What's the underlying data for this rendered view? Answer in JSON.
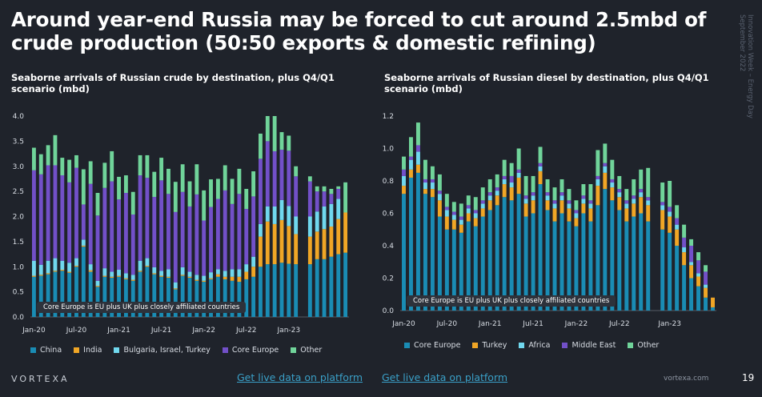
{
  "title": "Around year-end Russia may be forced to cut around 2.5mbd of crude production (50:50 exports & domestic refining)",
  "side_note_line1": "Innovation Week – Energy Day",
  "side_note_line2": "September 2022",
  "brand": "VORTEXA",
  "site": "vortexa.com",
  "page_number": "19",
  "links": [
    "Get live data on platform",
    "Get live data on platform"
  ],
  "colors": {
    "background": "#1f232b",
    "blue": "#1a8cb4",
    "orange": "#f0a626",
    "cyan": "#70d8ee",
    "purple": "#7250c8",
    "green": "#70d49a",
    "accent_link": "#3aa0c8"
  },
  "chart_data": [
    {
      "type": "bar",
      "stacked": true,
      "title": "Seaborne arrivals of Russian crude by destination, plus Q4/Q1 scenario (mbd)",
      "ylim": [
        0,
        4
      ],
      "yticks": [
        "0.0",
        "0.5",
        "1.0",
        "1.5",
        "2.0",
        "2.5",
        "3.0",
        "3.5",
        "4.0"
      ],
      "xtick_labels": [
        "Jan-20",
        "Jul-20",
        "Jan-21",
        "Jul-21",
        "Jan-22",
        "Jul-22",
        "Jan-23"
      ],
      "annotation": "Core Europe is EU plus UK plus closely affiliated countries",
      "series": [
        {
          "name": "China",
          "color": "#1a8cb4",
          "values": [
            0.8,
            0.82,
            0.85,
            0.9,
            0.92,
            0.88,
            1.0,
            1.4,
            0.9,
            0.6,
            0.8,
            0.78,
            0.8,
            0.75,
            0.72,
            0.9,
            1.0,
            0.85,
            0.8,
            0.78,
            0.55,
            0.82,
            0.78,
            0.72,
            0.7,
            0.75,
            0.8,
            0.75,
            0.72,
            0.7,
            0.75,
            0.8,
            1.0,
            1.05,
            1.05,
            1.08,
            1.06,
            1.05,
            null,
            1.05,
            1.15,
            1.15,
            1.2,
            1.25,
            1.28
          ]
        },
        {
          "name": "India",
          "color": "#f0a626",
          "values": [
            0.02,
            0.02,
            0.02,
            0.02,
            0.02,
            0.02,
            0.02,
            0.02,
            0.03,
            0.02,
            0.02,
            0.02,
            0.02,
            0.02,
            0.02,
            0.02,
            0.02,
            0.02,
            0.02,
            0.02,
            0.02,
            0.02,
            0.02,
            0.02,
            0.02,
            0.02,
            0.05,
            0.05,
            0.08,
            0.1,
            0.15,
            0.2,
            0.6,
            0.85,
            0.8,
            0.85,
            0.75,
            0.6,
            null,
            0.55,
            0.55,
            0.6,
            0.6,
            0.7,
            0.8
          ]
        },
        {
          "name": "Bulgaria, Israel, Turkey",
          "color": "#70d8ee",
          "values": [
            0.3,
            0.2,
            0.25,
            0.25,
            0.18,
            0.18,
            0.15,
            0.12,
            0.12,
            0.1,
            0.15,
            0.1,
            0.12,
            0.1,
            0.1,
            0.2,
            0.15,
            0.12,
            0.1,
            0.15,
            0.12,
            0.15,
            0.1,
            0.1,
            0.1,
            0.12,
            0.1,
            0.12,
            0.15,
            0.15,
            0.15,
            0.2,
            0.25,
            0.3,
            0.35,
            0.4,
            0.4,
            0.35,
            null,
            0.4,
            0.4,
            0.45,
            0.45,
            0.4,
            0.0
          ]
        },
        {
          "name": "Core Europe",
          "color": "#7250c8",
          "values": [
            1.8,
            1.8,
            1.9,
            1.85,
            1.7,
            1.6,
            1.8,
            0.7,
            1.6,
            1.3,
            1.6,
            1.8,
            1.4,
            1.6,
            1.2,
            1.7,
            1.6,
            1.4,
            1.8,
            1.5,
            1.4,
            1.5,
            1.3,
            1.6,
            1.1,
            1.3,
            1.4,
            1.6,
            1.3,
            1.5,
            1.1,
            1.2,
            1.3,
            1.3,
            1.1,
            1.0,
            1.1,
            0.8,
            null,
            0.7,
            0.4,
            0.3,
            0.2,
            0.2,
            0.0
          ]
        },
        {
          "name": "Other",
          "color": "#70d49a",
          "values": [
            0.45,
            0.4,
            0.4,
            0.6,
            0.35,
            0.45,
            0.25,
            0.7,
            0.45,
            0.45,
            0.5,
            0.6,
            0.45,
            0.35,
            0.45,
            0.4,
            0.45,
            0.5,
            0.45,
            0.5,
            0.6,
            0.55,
            0.5,
            0.6,
            0.6,
            0.55,
            0.4,
            0.5,
            0.5,
            0.5,
            0.4,
            0.5,
            0.5,
            0.5,
            0.7,
            0.35,
            0.3,
            0.2,
            null,
            0.1,
            0.1,
            0.1,
            0.1,
            0.05,
            0.6
          ]
        }
      ]
    },
    {
      "type": "bar",
      "stacked": true,
      "title": "Seaborne arrivals of Russian diesel by destination, plus Q4/Q1 scenario (mbd)",
      "ylim": [
        0,
        1.2
      ],
      "yticks": [
        "0.0",
        "0.2",
        "0.4",
        "0.6",
        "0.8",
        "1.0",
        "1.2"
      ],
      "xtick_labels": [
        "Jan-20",
        "Jul-20",
        "Jan-21",
        "Jul-21",
        "Jan-22",
        "Jul-22",
        "Jan-23"
      ],
      "annotation": "Core Europe is EU plus UK plus closely affiliated countries",
      "series": [
        {
          "name": "Core Europe",
          "color": "#1a8cb4",
          "values": [
            0.72,
            0.82,
            0.85,
            0.72,
            0.7,
            0.58,
            0.5,
            0.5,
            0.48,
            0.55,
            0.52,
            0.58,
            0.62,
            0.65,
            0.7,
            0.68,
            0.72,
            0.58,
            0.6,
            0.78,
            0.62,
            0.55,
            0.6,
            0.55,
            0.52,
            0.6,
            0.55,
            0.65,
            0.75,
            0.68,
            0.62,
            0.55,
            0.58,
            0.6,
            0.55,
            null,
            0.5,
            0.48,
            0.4,
            0.28,
            0.2,
            0.15,
            0.08,
            0.02
          ]
        },
        {
          "name": "Turkey",
          "color": "#f0a626",
          "values": [
            0.05,
            0.05,
            0.05,
            0.03,
            0.05,
            0.1,
            0.08,
            0.06,
            0.05,
            0.05,
            0.05,
            0.05,
            0.06,
            0.06,
            0.08,
            0.08,
            0.1,
            0.08,
            0.08,
            0.08,
            0.06,
            0.08,
            0.08,
            0.08,
            0.05,
            0.06,
            0.08,
            0.12,
            0.1,
            0.08,
            0.08,
            0.08,
            0.08,
            0.1,
            0.1,
            null,
            0.12,
            0.1,
            0.1,
            0.08,
            0.08,
            0.06,
            0.06,
            0.06
          ]
        },
        {
          "name": "Africa",
          "color": "#70d8ee",
          "values": [
            0.06,
            0.06,
            0.08,
            0.04,
            0.04,
            0.04,
            0.04,
            0.03,
            0.03,
            0.03,
            0.03,
            0.03,
            0.03,
            0.03,
            0.03,
            0.03,
            0.03,
            0.03,
            0.03,
            0.03,
            0.03,
            0.03,
            0.03,
            0.03,
            0.03,
            0.03,
            0.03,
            0.04,
            0.04,
            0.03,
            0.03,
            0.03,
            0.03,
            0.03,
            0.03,
            null,
            0.03,
            0.03,
            0.03,
            0.03,
            0.02,
            0.02,
            0.02,
            0.0
          ]
        },
        {
          "name": "Middle East",
          "color": "#7250c8",
          "values": [
            0.04,
            0.02,
            0.04,
            0.02,
            0.02,
            0.02,
            0.02,
            0.02,
            0.02,
            0.02,
            0.02,
            0.02,
            0.02,
            0.02,
            0.02,
            0.04,
            0.02,
            0.02,
            0.02,
            0.02,
            0.02,
            0.02,
            0.02,
            0.02,
            0.02,
            0.02,
            0.02,
            0.02,
            0.02,
            0.02,
            0.02,
            0.02,
            0.02,
            0.02,
            0.02,
            null,
            0.02,
            0.03,
            0.04,
            0.06,
            0.1,
            0.08,
            0.08,
            0.0
          ]
        },
        {
          "name": "Other",
          "color": "#70d49a",
          "values": [
            0.08,
            0.12,
            0.14,
            0.12,
            0.08,
            0.1,
            0.08,
            0.06,
            0.08,
            0.06,
            0.08,
            0.08,
            0.08,
            0.08,
            0.1,
            0.08,
            0.13,
            0.12,
            0.1,
            0.1,
            0.08,
            0.08,
            0.08,
            0.07,
            0.06,
            0.07,
            0.1,
            0.16,
            0.12,
            0.12,
            0.08,
            0.07,
            0.1,
            0.12,
            0.18,
            null,
            0.12,
            0.16,
            0.08,
            0.08,
            0.04,
            0.05,
            0.04,
            0.0
          ]
        }
      ]
    }
  ]
}
